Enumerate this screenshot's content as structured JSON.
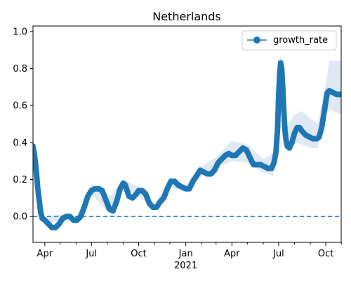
{
  "chart_data": {
    "type": "line",
    "title": "Netherlands",
    "legend": {
      "placement": "upper-right",
      "label": "growth_rate"
    },
    "colors": {
      "line": "#1f77b4",
      "band": "#dfe8f3",
      "hline": "#1f77b4"
    },
    "x_axis": {
      "start": "2020-03-09",
      "end": "2021-10-31",
      "tick_labels": [
        {
          "date": "2020-04-01",
          "label": "Apr"
        },
        {
          "date": "2020-07-01",
          "label": "Jul"
        },
        {
          "date": "2020-10-01",
          "label": "Oct"
        },
        {
          "date": "2021-01-01",
          "label": "Jan"
        },
        {
          "date": "2021-04-01",
          "label": "Apr"
        },
        {
          "date": "2021-07-01",
          "label": "Jul"
        },
        {
          "date": "2021-10-01",
          "label": "Oct"
        }
      ],
      "minor_ticks": [
        "2020-05-01",
        "2020-06-01",
        "2020-08-01",
        "2020-09-01",
        "2020-11-01",
        "2020-12-01",
        "2021-02-01",
        "2021-03-01",
        "2021-05-01",
        "2021-06-01",
        "2021-08-01",
        "2021-09-01",
        "2021-11-01"
      ],
      "year_label": "2021"
    },
    "y_axis": {
      "ylim": [
        -0.14,
        1.03
      ],
      "ticks": [
        0.0,
        0.2,
        0.4,
        0.6,
        0.8,
        1.0
      ],
      "tick_labels": [
        "0.0",
        "0.2",
        "0.4",
        "0.6",
        "0.8",
        "1.0"
      ]
    },
    "reference_line": {
      "y": 0.0,
      "style": "dashed"
    },
    "series": [
      {
        "name": "growth_rate",
        "marker": "circle",
        "points": [
          [
            "2020-03-09",
            0.38
          ],
          [
            "2020-03-12",
            0.33
          ],
          [
            "2020-03-15",
            0.26
          ],
          [
            "2020-03-18",
            0.16
          ],
          [
            "2020-03-21",
            0.09
          ],
          [
            "2020-03-24",
            0.02
          ],
          [
            "2020-03-27",
            -0.01
          ],
          [
            "2020-04-01",
            -0.02
          ],
          [
            "2020-04-08",
            -0.04
          ],
          [
            "2020-04-15",
            -0.06
          ],
          [
            "2020-04-22",
            -0.06
          ],
          [
            "2020-04-29",
            -0.04
          ],
          [
            "2020-05-06",
            -0.01
          ],
          [
            "2020-05-13",
            0.0
          ],
          [
            "2020-05-20",
            0.0
          ],
          [
            "2020-05-27",
            -0.02
          ],
          [
            "2020-06-03",
            -0.02
          ],
          [
            "2020-06-10",
            0.0
          ],
          [
            "2020-06-17",
            0.05
          ],
          [
            "2020-06-24",
            0.11
          ],
          [
            "2020-07-01",
            0.14
          ],
          [
            "2020-07-08",
            0.15
          ],
          [
            "2020-07-15",
            0.15
          ],
          [
            "2020-07-22",
            0.14
          ],
          [
            "2020-07-29",
            0.09
          ],
          [
            "2020-08-05",
            0.04
          ],
          [
            "2020-08-12",
            0.03
          ],
          [
            "2020-08-19",
            0.08
          ],
          [
            "2020-08-26",
            0.15
          ],
          [
            "2020-09-01",
            0.18
          ],
          [
            "2020-09-05",
            0.17
          ],
          [
            "2020-09-12",
            0.11
          ],
          [
            "2020-09-19",
            0.1
          ],
          [
            "2020-09-26",
            0.12
          ],
          [
            "2020-10-01",
            0.14
          ],
          [
            "2020-10-08",
            0.14
          ],
          [
            "2020-10-15",
            0.12
          ],
          [
            "2020-10-22",
            0.07
          ],
          [
            "2020-10-29",
            0.05
          ],
          [
            "2020-11-05",
            0.05
          ],
          [
            "2020-11-12",
            0.08
          ],
          [
            "2020-11-19",
            0.1
          ],
          [
            "2020-11-26",
            0.15
          ],
          [
            "2020-12-03",
            0.19
          ],
          [
            "2020-12-10",
            0.19
          ],
          [
            "2020-12-17",
            0.17
          ],
          [
            "2020-12-24",
            0.16
          ],
          [
            "2021-01-01",
            0.15
          ],
          [
            "2021-01-08",
            0.15
          ],
          [
            "2021-01-15",
            0.19
          ],
          [
            "2021-01-22",
            0.22
          ],
          [
            "2021-01-29",
            0.25
          ],
          [
            "2021-02-05",
            0.24
          ],
          [
            "2021-02-12",
            0.23
          ],
          [
            "2021-02-19",
            0.23
          ],
          [
            "2021-02-26",
            0.25
          ],
          [
            "2021-03-05",
            0.29
          ],
          [
            "2021-03-12",
            0.31
          ],
          [
            "2021-03-19",
            0.33
          ],
          [
            "2021-03-26",
            0.34
          ],
          [
            "2021-04-01",
            0.33
          ],
          [
            "2021-04-08",
            0.33
          ],
          [
            "2021-04-15",
            0.35
          ],
          [
            "2021-04-22",
            0.37
          ],
          [
            "2021-04-29",
            0.36
          ],
          [
            "2021-05-06",
            0.32
          ],
          [
            "2021-05-13",
            0.28
          ],
          [
            "2021-05-20",
            0.28
          ],
          [
            "2021-05-27",
            0.28
          ],
          [
            "2021-06-03",
            0.27
          ],
          [
            "2021-06-10",
            0.26
          ],
          [
            "2021-06-17",
            0.26
          ],
          [
            "2021-06-22",
            0.29
          ],
          [
            "2021-06-26",
            0.35
          ],
          [
            "2021-06-29",
            0.48
          ],
          [
            "2021-07-01",
            0.65
          ],
          [
            "2021-07-03",
            0.77
          ],
          [
            "2021-07-05",
            0.83
          ],
          [
            "2021-07-07",
            0.8
          ],
          [
            "2021-07-09",
            0.7
          ],
          [
            "2021-07-11",
            0.58
          ],
          [
            "2021-07-13",
            0.48
          ],
          [
            "2021-07-15",
            0.42
          ],
          [
            "2021-07-18",
            0.38
          ],
          [
            "2021-07-22",
            0.37
          ],
          [
            "2021-07-27",
            0.4
          ],
          [
            "2021-08-01",
            0.45
          ],
          [
            "2021-08-06",
            0.48
          ],
          [
            "2021-08-11",
            0.48
          ],
          [
            "2021-08-16",
            0.46
          ],
          [
            "2021-08-23",
            0.44
          ],
          [
            "2021-08-30",
            0.43
          ],
          [
            "2021-09-06",
            0.42
          ],
          [
            "2021-09-13",
            0.42
          ],
          [
            "2021-09-18",
            0.43
          ],
          [
            "2021-09-23",
            0.48
          ],
          [
            "2021-09-27",
            0.55
          ],
          [
            "2021-10-01",
            0.62
          ],
          [
            "2021-10-04",
            0.67
          ],
          [
            "2021-10-08",
            0.68
          ],
          [
            "2021-10-15",
            0.67
          ],
          [
            "2021-10-22",
            0.66
          ],
          [
            "2021-10-29",
            0.66
          ]
        ],
        "band": [
          [
            "2020-03-09",
            0.34,
            0.42
          ],
          [
            "2020-04-01",
            -0.04,
            0.0
          ],
          [
            "2020-05-01",
            -0.02,
            0.01
          ],
          [
            "2020-06-01",
            -0.03,
            -0.01
          ],
          [
            "2020-07-01",
            0.12,
            0.18
          ],
          [
            "2020-08-01",
            0.03,
            0.09
          ],
          [
            "2020-09-01",
            0.15,
            0.2
          ],
          [
            "2020-10-01",
            0.11,
            0.16
          ],
          [
            "2020-11-01",
            0.04,
            0.06
          ],
          [
            "2020-12-01",
            0.16,
            0.21
          ],
          [
            "2021-01-01",
            0.13,
            0.17
          ],
          [
            "2021-02-01",
            0.22,
            0.27
          ],
          [
            "2021-03-01",
            0.26,
            0.32
          ],
          [
            "2021-04-01",
            0.3,
            0.41
          ],
          [
            "2021-05-01",
            0.29,
            0.39
          ],
          [
            "2021-06-01",
            0.24,
            0.31
          ],
          [
            "2021-06-20",
            0.22,
            0.34
          ],
          [
            "2021-07-01",
            0.52,
            0.8
          ],
          [
            "2021-07-05",
            0.74,
            0.88
          ],
          [
            "2021-07-15",
            0.37,
            0.48
          ],
          [
            "2021-08-01",
            0.4,
            0.55
          ],
          [
            "2021-08-15",
            0.39,
            0.57
          ],
          [
            "2021-09-01",
            0.37,
            0.53
          ],
          [
            "2021-09-15",
            0.37,
            0.5
          ],
          [
            "2021-10-01",
            0.56,
            0.72
          ],
          [
            "2021-10-08",
            0.58,
            0.84
          ],
          [
            "2021-10-31",
            0.55,
            0.84
          ]
        ]
      }
    ]
  }
}
